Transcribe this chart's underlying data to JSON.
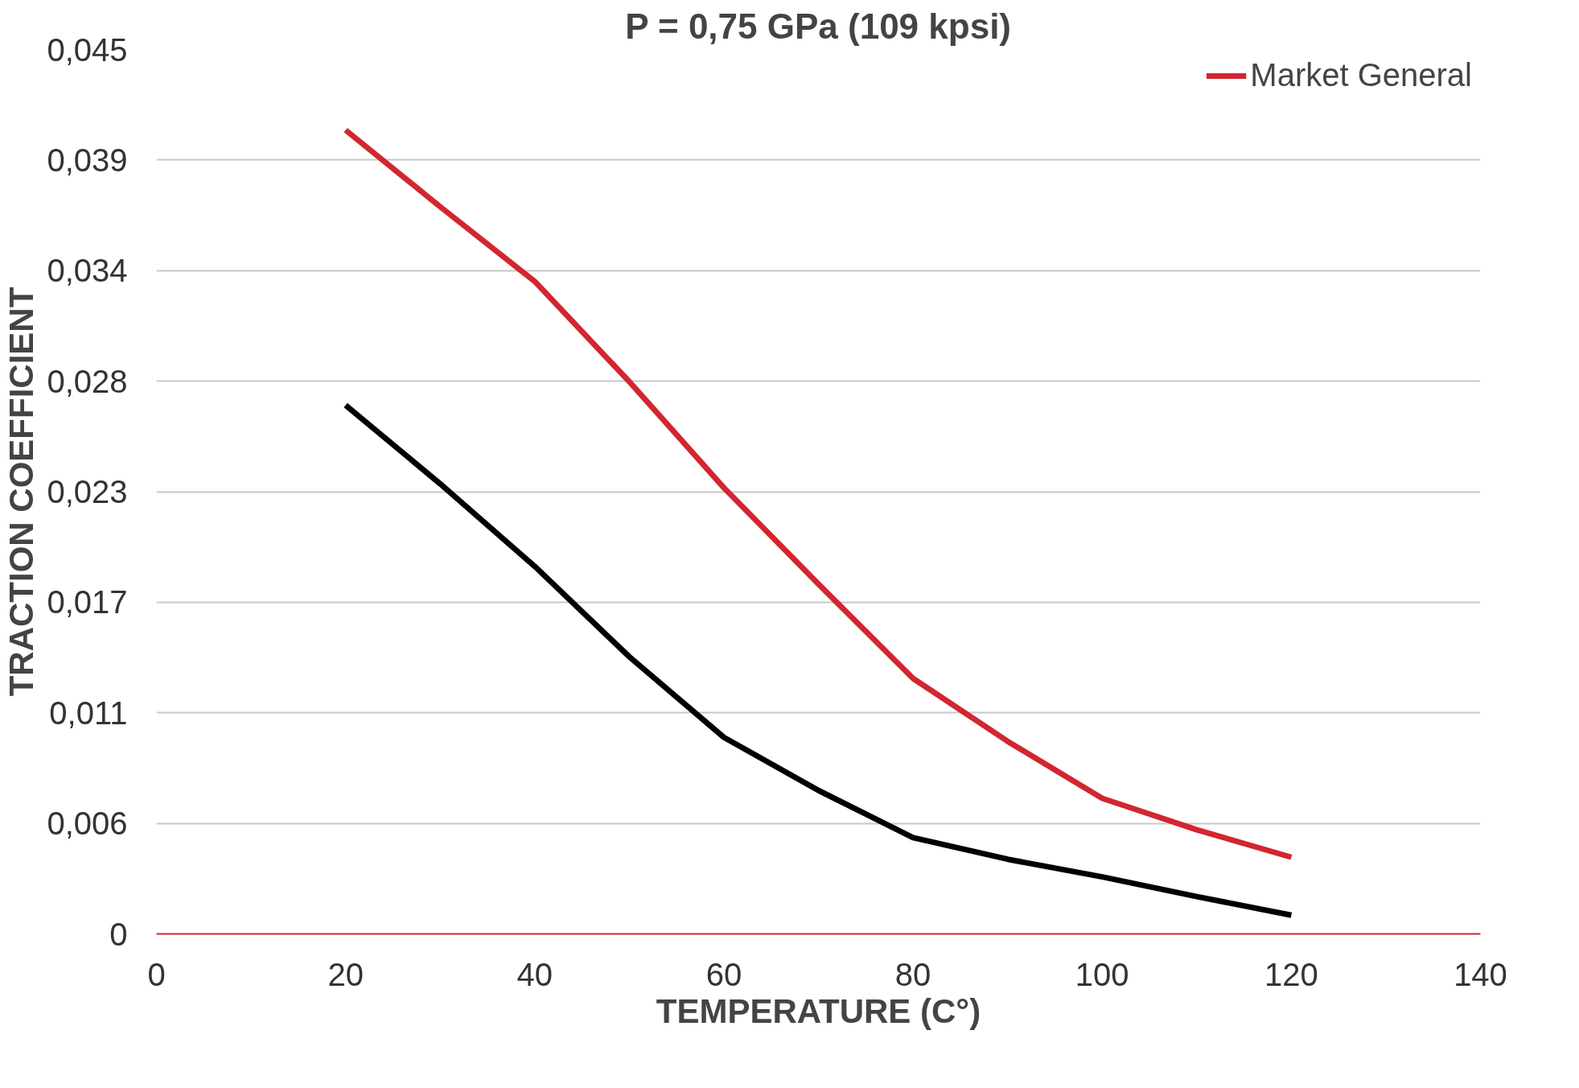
{
  "chart_data": {
    "type": "line",
    "title": "P = 0,75 GPa (109 kpsi)",
    "xlabel": "TEMPERATURE (C°)",
    "ylabel": "TRACTION COEFFICIENT",
    "xlim": [
      0,
      140
    ],
    "xticks": [
      0,
      20,
      40,
      60,
      80,
      100,
      120,
      140
    ],
    "ylim": [
      0,
      0.045
    ],
    "yticks": [
      0,
      {
        "value": 0.005625,
        "label": "0,006"
      },
      {
        "value": 0.01125,
        "label": "0,011"
      },
      {
        "value": 0.016875,
        "label": "0,017"
      },
      {
        "value": 0.0225,
        "label": "0,023"
      },
      {
        "value": 0.028125,
        "label": "0,028"
      },
      {
        "value": 0.03375,
        "label": "0,034"
      },
      {
        "value": 0.039375,
        "label": "0,039"
      },
      {
        "value": 0.045,
        "label": "0,045"
      }
    ],
    "grid": "y",
    "legend": "top right",
    "line_style": "solid",
    "marker": "none",
    "x": [
      20,
      30,
      40,
      50,
      60,
      70,
      80,
      90,
      100,
      110,
      120
    ],
    "series": [
      {
        "color": "#000000",
        "values": [
          0.0269,
          0.0229,
          0.0187,
          0.0141,
          0.01,
          0.0073,
          0.0049,
          0.0038,
          0.0029,
          0.0019,
          0.00095
        ]
      },
      {
        "name": "Market General",
        "color": "#d22630",
        "values": [
          0.0409,
          0.037,
          0.0332,
          0.0281,
          0.0227,
          0.0178,
          0.013,
          0.0098,
          0.0069,
          0.0053,
          0.0039
        ]
      }
    ]
  }
}
